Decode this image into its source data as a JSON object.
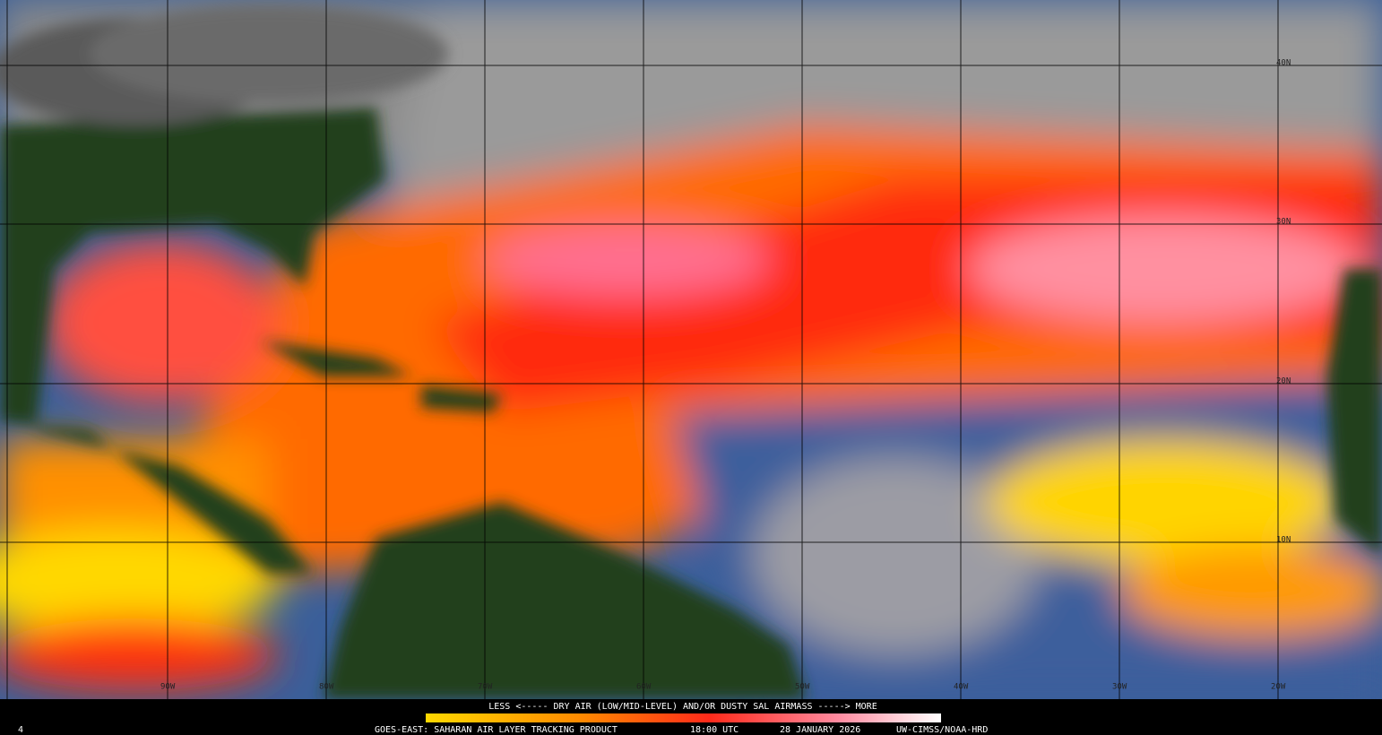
{
  "map": {
    "latitude_labels": [
      "40N",
      "30N",
      "20N",
      "10N"
    ],
    "longitude_labels": [
      "90W",
      "80W",
      "70W",
      "60W",
      "50W",
      "40W",
      "30W",
      "20W"
    ]
  },
  "legend": {
    "text": "LESS <----- DRY AIR (LOW/MID-LEVEL) AND/OR DUSTY SAL AIRMASS -----> MORE"
  },
  "footer": {
    "product": "GOES-EAST: SAHARAN AIR LAYER TRACKING PRODUCT",
    "time": "18:00 UTC",
    "date": "28 JANUARY 2026",
    "credit": "UW-CIMSS/NOAA-HRD"
  },
  "corner_label": "4"
}
